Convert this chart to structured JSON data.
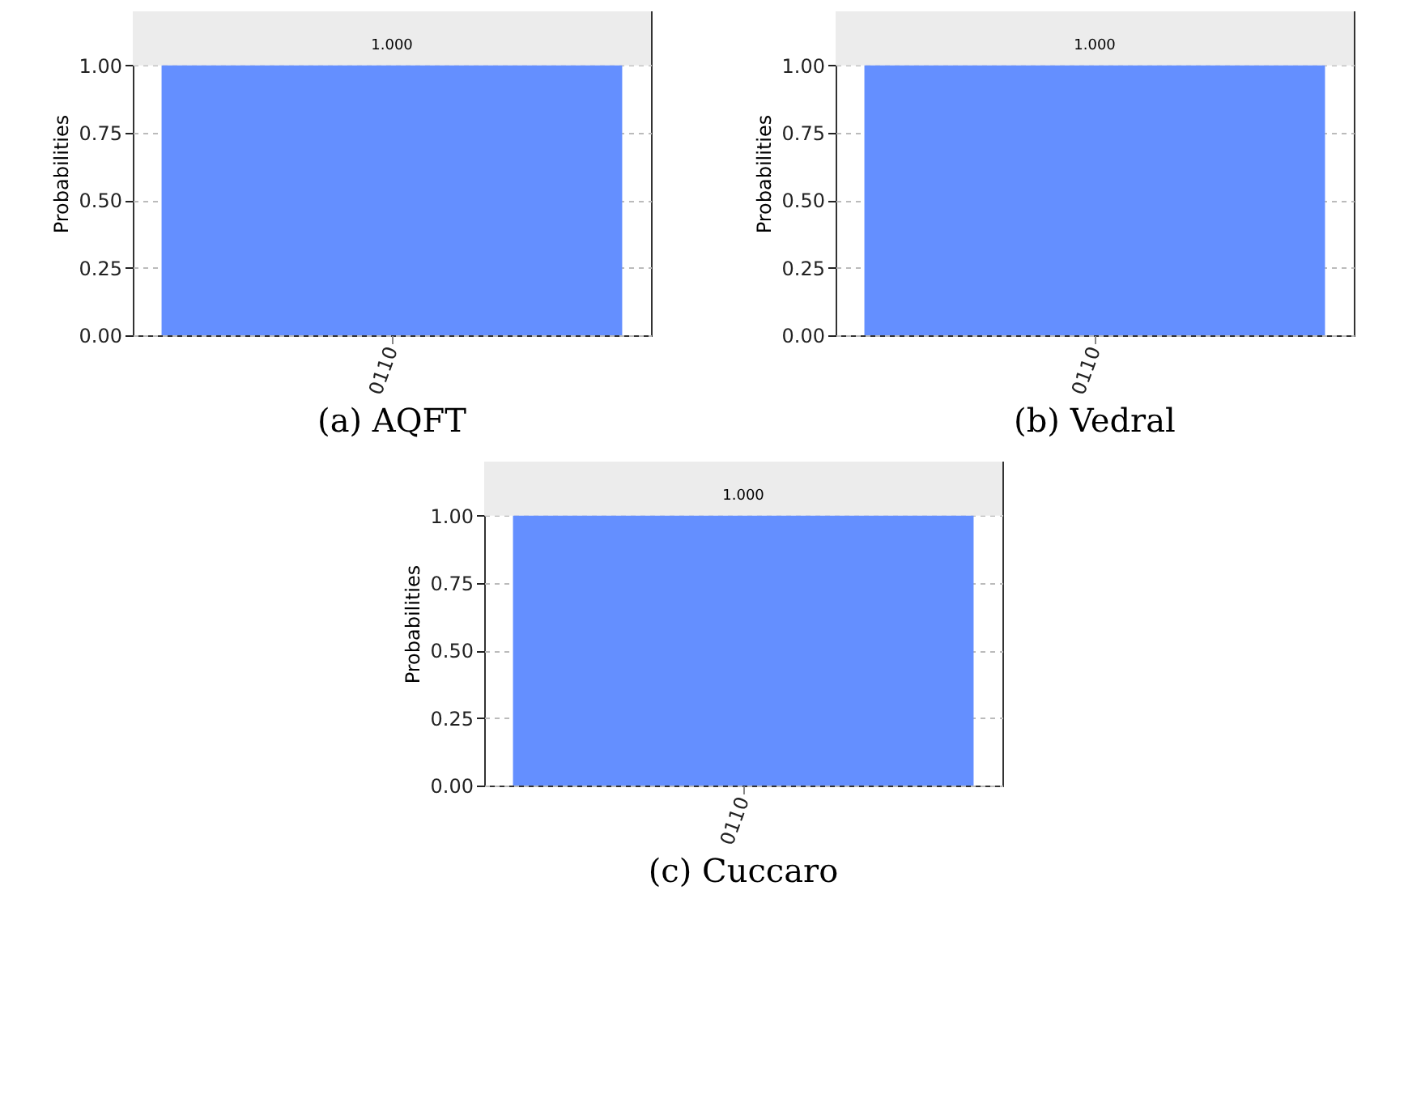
{
  "chart_data": [
    {
      "type": "bar",
      "title": "(a) AQFT",
      "ylabel": "Probabilities",
      "categories": [
        "0110"
      ],
      "values": [
        1
      ],
      "value_labels": [
        "1.000"
      ],
      "color": "#648fff",
      "ylim": [
        0,
        1.2
      ],
      "yticks": [
        {
          "value": 0,
          "label": "0.00"
        },
        {
          "value": 0.25,
          "label": "0.25"
        },
        {
          "value": 0.5,
          "label": "0.50"
        },
        {
          "value": 0.75,
          "label": "0.75"
        },
        {
          "value": 1,
          "label": "1.00"
        }
      ],
      "grid": "y",
      "bands": [
        {
          "axis": "y",
          "from": 1,
          "to": 1.2,
          "color": "#ececec"
        }
      ]
    },
    {
      "type": "bar",
      "title": "(b) Vedral",
      "ylabel": "Probabilities",
      "categories": [
        "0110"
      ],
      "values": [
        1
      ],
      "value_labels": [
        "1.000"
      ],
      "color": "#648fff",
      "ylim": [
        0,
        1.2
      ],
      "yticks": [
        {
          "value": 0,
          "label": "0.00"
        },
        {
          "value": 0.25,
          "label": "0.25"
        },
        {
          "value": 0.5,
          "label": "0.50"
        },
        {
          "value": 0.75,
          "label": "0.75"
        },
        {
          "value": 1,
          "label": "1.00"
        }
      ],
      "grid": "y",
      "bands": [
        {
          "axis": "y",
          "from": 1,
          "to": 1.2,
          "color": "#ececec"
        }
      ]
    },
    {
      "type": "bar",
      "title": "(c) Cuccaro",
      "ylabel": "Probabilities",
      "categories": [
        "0110"
      ],
      "values": [
        1
      ],
      "value_labels": [
        "1.000"
      ],
      "color": "#648fff",
      "ylim": [
        0,
        1.2
      ],
      "yticks": [
        {
          "value": 0,
          "label": "0.00"
        },
        {
          "value": 0.25,
          "label": "0.25"
        },
        {
          "value": 0.5,
          "label": "0.50"
        },
        {
          "value": 0.75,
          "label": "0.75"
        },
        {
          "value": 1,
          "label": "1.00"
        }
      ],
      "grid": "y",
      "bands": [
        {
          "axis": "y",
          "from": 1,
          "to": 1.2,
          "color": "#ececec"
        }
      ]
    }
  ]
}
